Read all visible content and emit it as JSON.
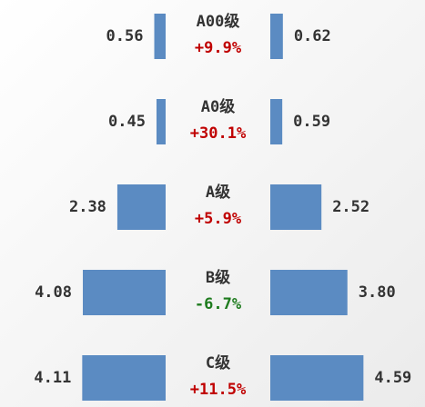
{
  "chart_data": {
    "type": "butterfly-bar",
    "categories": [
      "A00级",
      "A0级",
      "A级",
      "B级",
      "C级"
    ],
    "changes": [
      "+9.9%",
      "+30.1%",
      "+5.9%",
      "-6.7%",
      "+11.5%"
    ],
    "change_colors": [
      "#c00000",
      "#c00000",
      "#c00000",
      "#1e7b1e",
      "#c00000"
    ],
    "series": [
      {
        "color": "#5b8bc2",
        "values": [
          0.56,
          0.45,
          2.38,
          4.08,
          4.11
        ]
      },
      {
        "color": "#5b8bc2",
        "values": [
          0.62,
          0.59,
          2.52,
          3.8,
          4.59
        ],
        "value_labels": [
          "0.62",
          "0.59",
          "2.52",
          "3.80",
          "4.59"
        ]
      }
    ]
  }
}
